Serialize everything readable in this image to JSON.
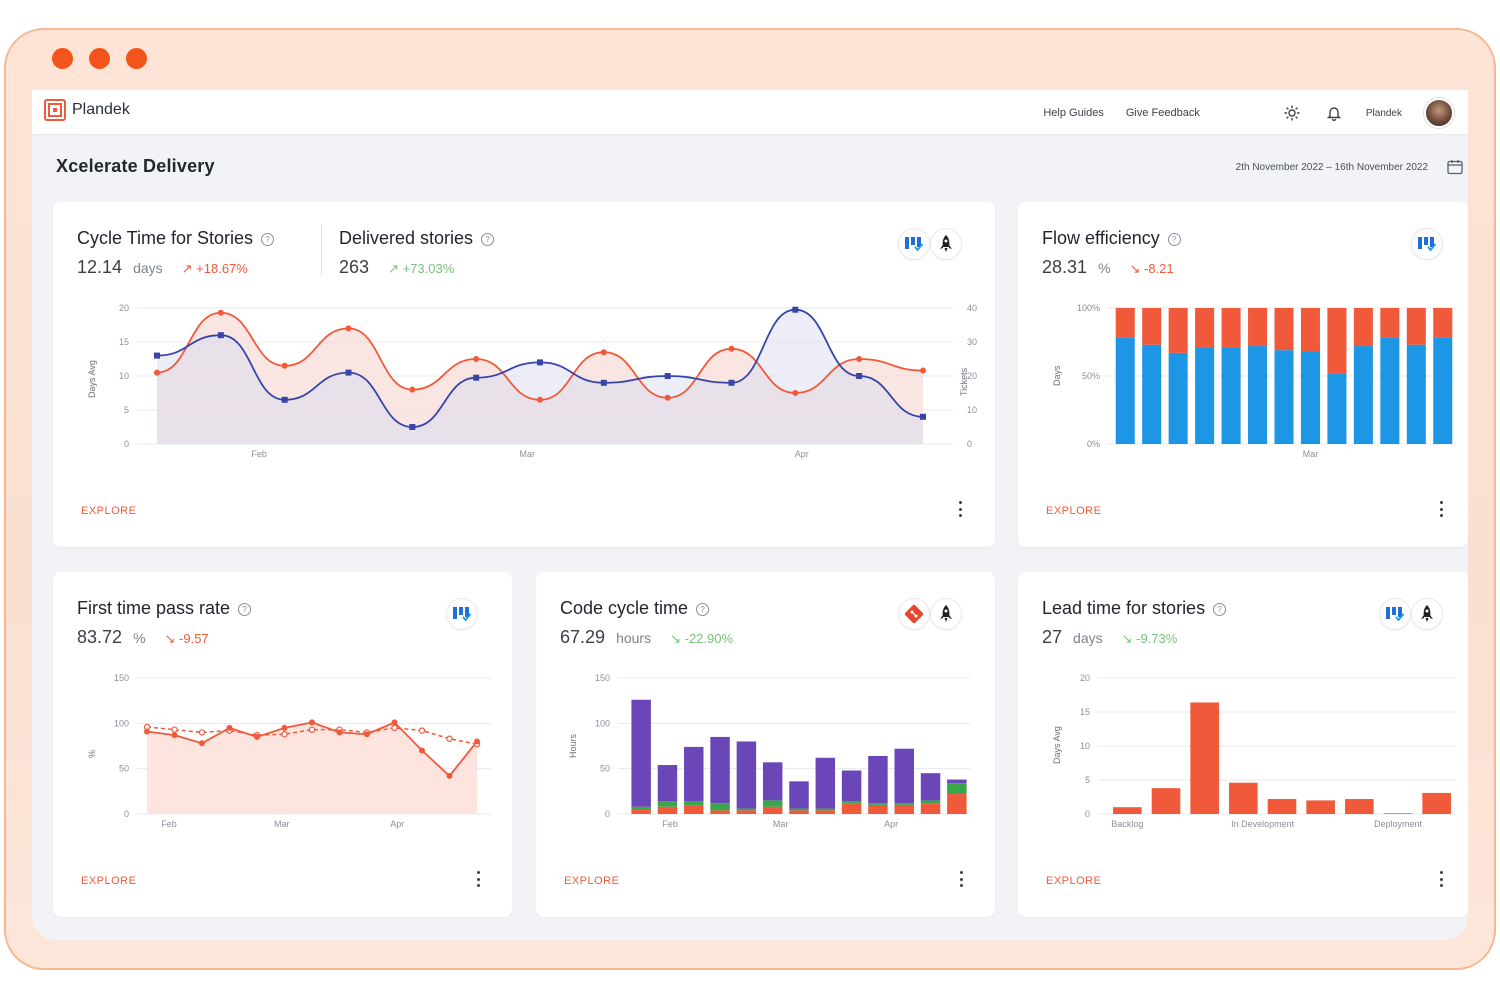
{
  "window": {
    "dot_color": "#f2541b"
  },
  "topbar": {
    "brand": "Plandek",
    "help_guides": "Help Guides",
    "give_feedback": "Give Feedback",
    "user_name": "Plandek"
  },
  "page": {
    "title": "Xcelerate Delivery",
    "date_range": "2th November 2022  –  16th November 2022"
  },
  "cards": {
    "cycle": {
      "title": "Cycle Time for Stories",
      "value": "12.14",
      "unit": "days",
      "delta": "↗ +18.67%",
      "explore": "EXPLORE"
    },
    "delivered": {
      "title": "Delivered stories",
      "value": "263",
      "delta": "↗ +73.03%"
    },
    "flow": {
      "title": "Flow efficiency",
      "value": "28.31",
      "unit": "%",
      "delta": "↘ -8.21",
      "explore": "EXPLORE"
    },
    "ftpr": {
      "title": "First time pass rate",
      "value": "83.72",
      "unit": "%",
      "delta": "↘ -9.57",
      "explore": "EXPLORE"
    },
    "code": {
      "title": "Code cycle time",
      "value": "67.29",
      "unit": "hours",
      "delta": "↘ -22.90%",
      "explore": "EXPLORE"
    },
    "lead": {
      "title": "Lead time for stories",
      "value": "27",
      "unit": "days",
      "delta": "↘ -9.73%",
      "explore": "EXPLORE"
    }
  },
  "chart_data": [
    {
      "id": "cycle-delivered",
      "type": "line",
      "x_ticks": [
        "Feb",
        "Mar",
        "Apr"
      ],
      "x_tick_index": [
        1.6,
        5.8,
        10.1
      ],
      "ylabel": "Days Avg",
      "ylim": [
        0,
        20
      ],
      "yticks": [
        0,
        5,
        10,
        15,
        20
      ],
      "y2label": "Tickets",
      "y2lim": [
        0,
        40
      ],
      "y2ticks": [
        0,
        10,
        20,
        30,
        40
      ],
      "colors": {
        "days": "#f05a3a",
        "tickets": "#3845a8"
      },
      "series": [
        {
          "axis": "left",
          "values": [
            10.5,
            19.3,
            11.5,
            17,
            8,
            12.5,
            6.5,
            13.5,
            6.8,
            14,
            7.5,
            12.5,
            10.8
          ]
        },
        {
          "axis": "right",
          "values": [
            26,
            32,
            13,
            21,
            5,
            19.5,
            24,
            18,
            20,
            18,
            39.5,
            20,
            8
          ]
        }
      ]
    },
    {
      "id": "flow",
      "type": "bar",
      "stacked": true,
      "ylabel": "Days",
      "yticks": [
        "0%",
        "50%",
        "100%"
      ],
      "x_ticks": [
        "Mar"
      ],
      "x_tick_index": [
        7
      ],
      "colors": {
        "active": "#1e96e6",
        "wait": "#f05a3a"
      },
      "series": [
        {
          "values": [
            78,
            73,
            67,
            71,
            71,
            72,
            69,
            68,
            52,
            72,
            78,
            73,
            78
          ]
        },
        {
          "values": [
            22,
            27,
            33,
            29,
            29,
            28,
            31,
            32,
            48,
            28,
            22,
            27,
            22
          ]
        }
      ]
    },
    {
      "id": "ftpr",
      "type": "line",
      "ylabel": "%",
      "ylim": [
        0,
        150
      ],
      "yticks": [
        0,
        50,
        100,
        150
      ],
      "x_ticks": [
        "Feb",
        "Mar",
        "Apr"
      ],
      "x_tick_index": [
        0.8,
        4.9,
        9.1
      ],
      "colors": {
        "line": "#f05a3a",
        "fill": "#fde4de"
      },
      "series": [
        {
          "style": "solid",
          "values": [
            91,
            87,
            78,
            95,
            85,
            95,
            101,
            90,
            88,
            101,
            70,
            42,
            80
          ]
        },
        {
          "style": "dashed",
          "values": [
            96,
            93,
            90,
            92,
            87,
            88,
            93,
            93,
            90,
            95,
            92,
            83,
            77
          ]
        }
      ]
    },
    {
      "id": "code",
      "type": "bar",
      "stacked": true,
      "ylabel": "Hours",
      "ylim": [
        0,
        150
      ],
      "yticks": [
        0,
        50,
        100,
        150
      ],
      "x_ticks": [
        "Feb",
        "Mar",
        "Apr"
      ],
      "x_tick_index": [
        1.1,
        5.3,
        9.5
      ],
      "colors": {
        "purple": "#6a46b8",
        "green": "#3aa64a",
        "orange": "#f05a3a"
      },
      "series": [
        {
          "name": "orange",
          "values": [
            5,
            8,
            9,
            4,
            4,
            8,
            4,
            4,
            12,
            10,
            10,
            12,
            22
          ]
        },
        {
          "name": "green",
          "values": [
            3,
            6,
            5,
            8,
            2,
            7,
            2,
            2,
            2,
            2,
            2,
            3,
            12
          ]
        },
        {
          "name": "purple",
          "values": [
            118,
            40,
            60,
            73,
            74,
            42,
            30,
            56,
            34,
            52,
            60,
            30,
            4
          ]
        }
      ]
    },
    {
      "id": "lead",
      "type": "bar",
      "ylabel": "Days Avg",
      "ylim": [
        0,
        20
      ],
      "yticks": [
        0,
        5,
        10,
        15,
        20
      ],
      "x_ticks": [
        "Backlog",
        "In Development",
        "Deployment"
      ],
      "x_tick_index": [
        0.5,
        4.0,
        7.5
      ],
      "colors": {
        "bar": "#f05a3a"
      },
      "values": [
        1,
        3.8,
        16.4,
        4.6,
        2.2,
        2,
        2.2,
        0.1,
        3.1
      ]
    }
  ]
}
